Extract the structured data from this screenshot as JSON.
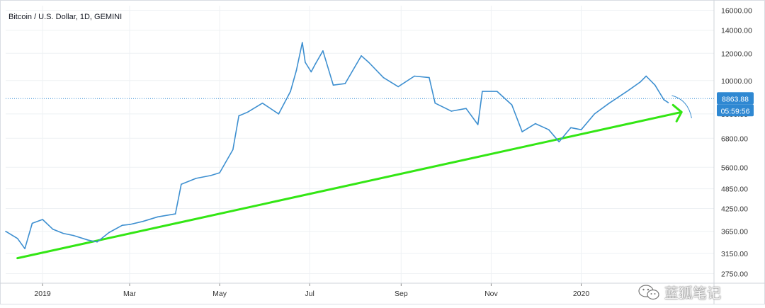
{
  "title": "Bitcoin / U.S. Dollar, 1D, GEMINI",
  "price_label": "8863.88",
  "countdown_label": "05:59:56",
  "watermark": "蓝狐笔记",
  "colors": {
    "price_line": "#3d8fd0",
    "trend_line": "#33e614",
    "label_bg": "#2f88d2",
    "grid": "#eef1f4",
    "axis_text": "#333333"
  },
  "chart_data": {
    "type": "line",
    "title": "Bitcoin / U.S. Dollar, 1D, GEMINI",
    "xlabel": "",
    "ylabel": "",
    "log_scale": true,
    "y_ticks": [
      2750,
      3150,
      3650,
      4250,
      4850,
      5600,
      6800,
      8000,
      10000,
      12000,
      14000,
      16000
    ],
    "x_ticks": [
      "2019",
      "Mar",
      "May",
      "Jul",
      "Sep",
      "Nov",
      "2020"
    ],
    "x_tick_dates": [
      "2019-01-01",
      "2019-03-01",
      "2019-05-01",
      "2019-07-01",
      "2019-09-01",
      "2019-11-01",
      "2020-01-01"
    ],
    "series": [
      {
        "x": [
          "2018-12-07",
          "2018-12-15",
          "2018-12-20",
          "2018-12-25",
          "2019-01-01",
          "2019-01-08",
          "2019-01-15",
          "2019-01-22",
          "2019-02-01",
          "2019-02-07",
          "2019-02-15",
          "2019-02-24",
          "2019-03-01",
          "2019-03-10",
          "2019-03-20",
          "2019-04-01",
          "2019-04-05",
          "2019-04-15",
          "2019-04-25",
          "2019-05-01",
          "2019-05-10",
          "2019-05-14",
          "2019-05-20",
          "2019-05-30",
          "2019-06-10",
          "2019-06-18",
          "2019-06-22",
          "2019-06-26",
          "2019-06-28",
          "2019-07-02",
          "2019-07-05",
          "2019-07-10",
          "2019-07-17",
          "2019-07-25",
          "2019-08-05",
          "2019-08-10",
          "2019-08-20",
          "2019-08-30",
          "2019-09-10",
          "2019-09-20",
          "2019-09-24",
          "2019-10-05",
          "2019-10-15",
          "2019-10-23",
          "2019-10-26",
          "2019-11-05",
          "2019-11-15",
          "2019-11-22",
          "2019-12-01",
          "2019-12-10",
          "2019-12-17",
          "2019-12-25",
          "2020-01-01",
          "2020-01-10",
          "2020-01-20",
          "2020-02-01",
          "2020-02-10",
          "2020-02-14",
          "2020-02-20",
          "2020-02-26",
          "2020-02-29"
        ],
        "values": [
          3650,
          3480,
          3250,
          3850,
          3950,
          3700,
          3600,
          3550,
          3440,
          3400,
          3620,
          3800,
          3820,
          3900,
          4020,
          4100,
          5000,
          5200,
          5300,
          5400,
          6300,
          7900,
          8100,
          8600,
          8000,
          9300,
          10700,
          12900,
          11300,
          10600,
          11200,
          12200,
          9700,
          9800,
          11800,
          11300,
          10200,
          9600,
          10300,
          10200,
          8600,
          8150,
          8300,
          7450,
          9300,
          9300,
          8500,
          7100,
          7500,
          7200,
          6640,
          7300,
          7200,
          8000,
          8600,
          9300,
          9900,
          10300,
          9700,
          8800,
          8630
        ]
      }
    ],
    "trend_line": {
      "start": [
        "2018-12-15",
        3050
      ],
      "end": [
        "2020-03-09",
        8100
      ]
    },
    "current_price": 8863.88
  }
}
